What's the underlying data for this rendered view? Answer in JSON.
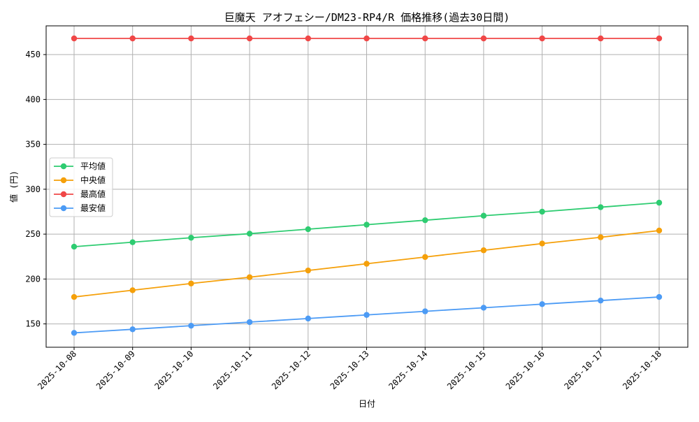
{
  "chart_data": {
    "type": "line",
    "title": "巨魔天 アオフェシー/DM23-RP4/R 価格推移(過去30日間)",
    "xlabel": "日付",
    "ylabel": "値 (円)",
    "categories": [
      "2025-10-08",
      "2025-10-09",
      "2025-10-10",
      "2025-10-11",
      "2025-10-12",
      "2025-10-13",
      "2025-10-14",
      "2025-10-15",
      "2025-10-16",
      "2025-10-17",
      "2025-10-18"
    ],
    "ylim": [
      124,
      482
    ],
    "yticks": [
      150,
      200,
      250,
      300,
      350,
      400,
      450
    ],
    "grid": true,
    "legend_position": "center-left",
    "series": [
      {
        "name": "平均値",
        "color": "#2ecc71",
        "values": [
          236,
          241,
          246,
          250.5,
          255.5,
          260.5,
          265.5,
          270.5,
          275,
          280,
          285
        ]
      },
      {
        "name": "中央値",
        "color": "#f5a00a",
        "values": [
          180,
          187.5,
          195,
          202,
          209.5,
          217,
          224.5,
          232,
          239.5,
          246.5,
          254
        ]
      },
      {
        "name": "最高値",
        "color": "#f04747",
        "values": [
          468,
          468,
          468,
          468,
          468,
          468,
          468,
          468,
          468,
          468,
          468
        ]
      },
      {
        "name": "最安値",
        "color": "#4c9bf5",
        "values": [
          140,
          144,
          148,
          152,
          156,
          160,
          164,
          168,
          172,
          176,
          180
        ]
      }
    ]
  }
}
